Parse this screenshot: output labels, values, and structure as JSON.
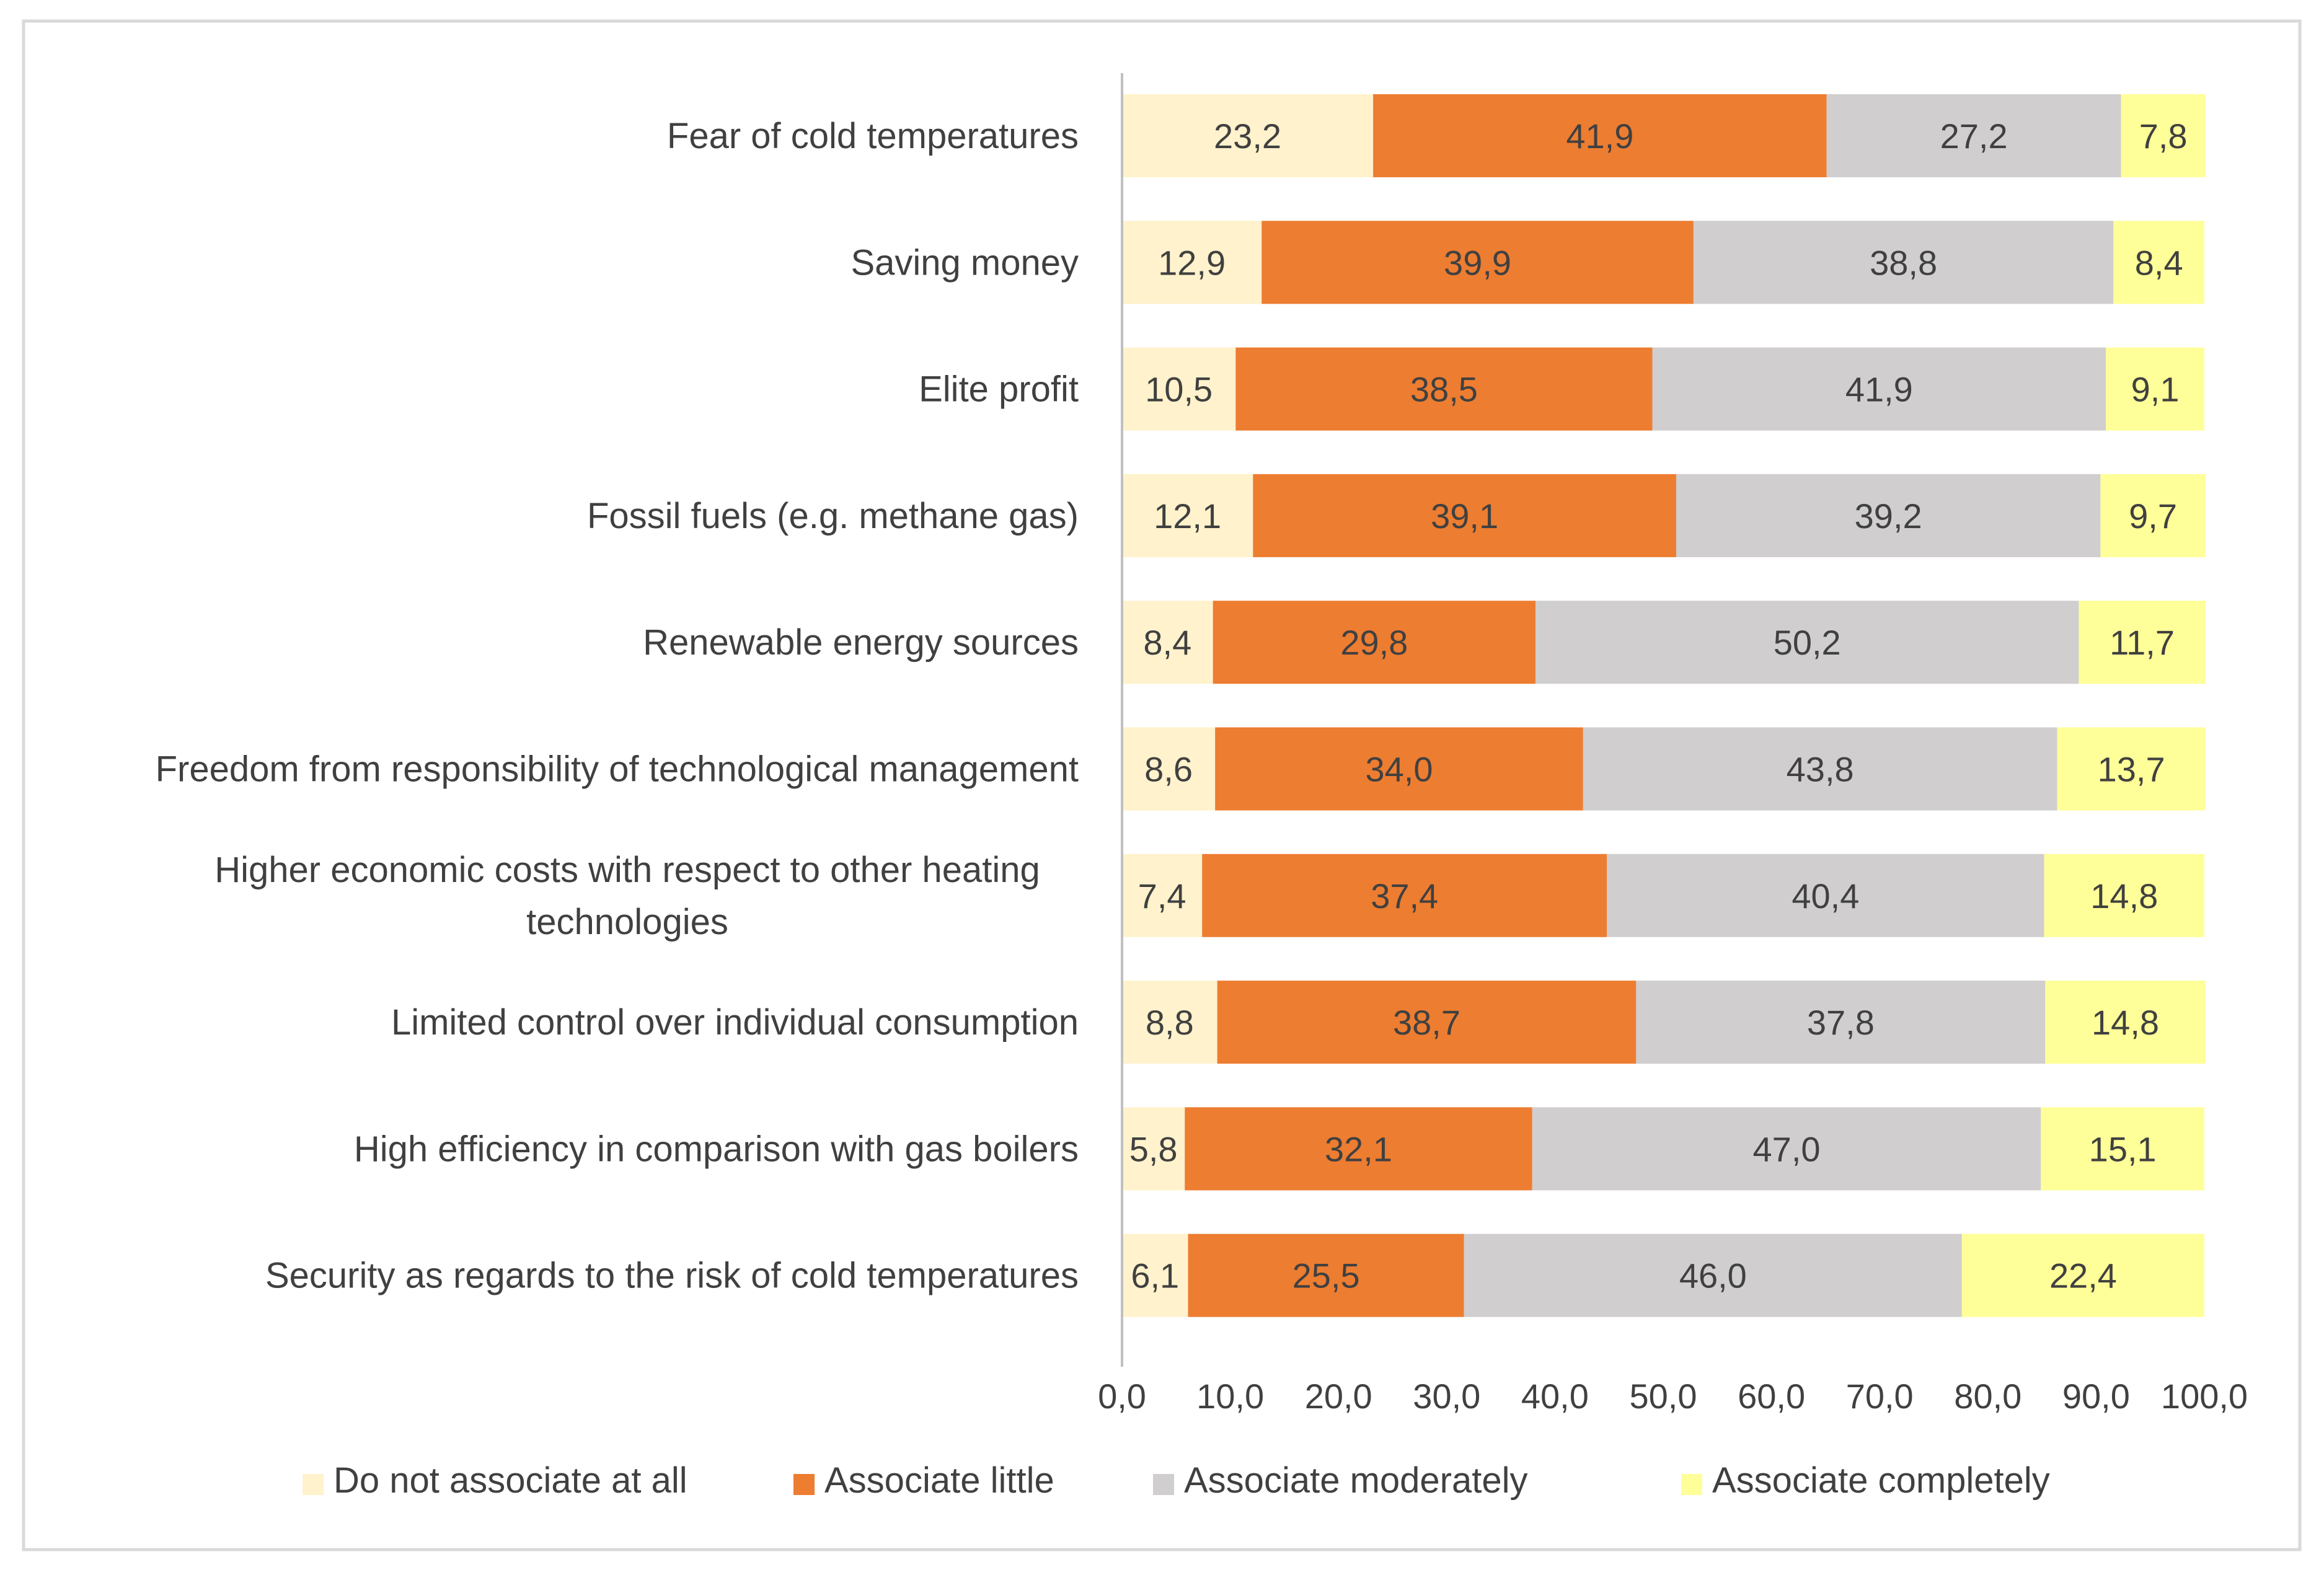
{
  "chart_data": {
    "type": "bar",
    "orientation": "horizontal",
    "stacked": true,
    "title": "",
    "xlabel": "",
    "ylabel": "",
    "xlim": [
      0,
      100
    ],
    "x_ticks": [
      "0,0",
      "10,0",
      "20,0",
      "30,0",
      "40,0",
      "50,0",
      "60,0",
      "70,0",
      "80,0",
      "90,0",
      "100,0"
    ],
    "grid": false,
    "legend_position": "bottom",
    "categories": [
      [
        "Fear of cold temperatures"
      ],
      [
        "Saving money"
      ],
      [
        "Elite profit"
      ],
      [
        "Fossil fuels (e.g. methane gas)"
      ],
      [
        "Renewable energy sources"
      ],
      [
        "Freedom from responsibility of technological management"
      ],
      [
        "Higher economic costs with respect to other heating",
        "technologies"
      ],
      [
        "Limited control over individual consumption"
      ],
      [
        "High efficiency in comparison with gas boilers"
      ],
      [
        "Security as regards to the risk of cold temperatures"
      ]
    ],
    "series": [
      {
        "name": "Do not associate at all",
        "color": "#FFF2CC",
        "values": [
          23.2,
          12.9,
          10.5,
          12.1,
          8.4,
          8.6,
          7.4,
          8.8,
          5.8,
          6.1
        ],
        "labels": [
          "23,2",
          "12,9",
          "10,5",
          "12,1",
          "8,4",
          "8,6",
          "7,4",
          "8,8",
          "5,8",
          "6,1"
        ]
      },
      {
        "name": "Associate little",
        "color": "#ED7D31",
        "values": [
          41.9,
          39.9,
          38.5,
          39.1,
          29.8,
          34.0,
          37.4,
          38.7,
          32.1,
          25.5
        ],
        "labels": [
          "41,9",
          "39,9",
          "38,5",
          "39,1",
          "29,8",
          "34,0",
          "37,4",
          "38,7",
          "32,1",
          "25,5"
        ]
      },
      {
        "name": "Associate moderately",
        "color": "#D0CECE",
        "values": [
          27.2,
          38.8,
          41.9,
          39.2,
          50.2,
          43.8,
          40.4,
          37.8,
          47.0,
          46.0
        ],
        "labels": [
          "27,2",
          "38,8",
          "41,9",
          "39,2",
          "50,2",
          "43,8",
          "40,4",
          "37,8",
          "47,0",
          "46,0"
        ]
      },
      {
        "name": "Associate completely",
        "color": "#FFFF99",
        "values": [
          7.8,
          8.4,
          9.1,
          9.7,
          11.7,
          13.7,
          14.8,
          14.8,
          15.1,
          22.4
        ],
        "labels": [
          "7,8",
          "8,4",
          "9,1",
          "9,7",
          "11,7",
          "13,7",
          "14,8",
          "14,8",
          "15,1",
          "22,4"
        ]
      }
    ],
    "frame_color": "#D9D9D9",
    "axis_color": "#BFBFBF"
  }
}
